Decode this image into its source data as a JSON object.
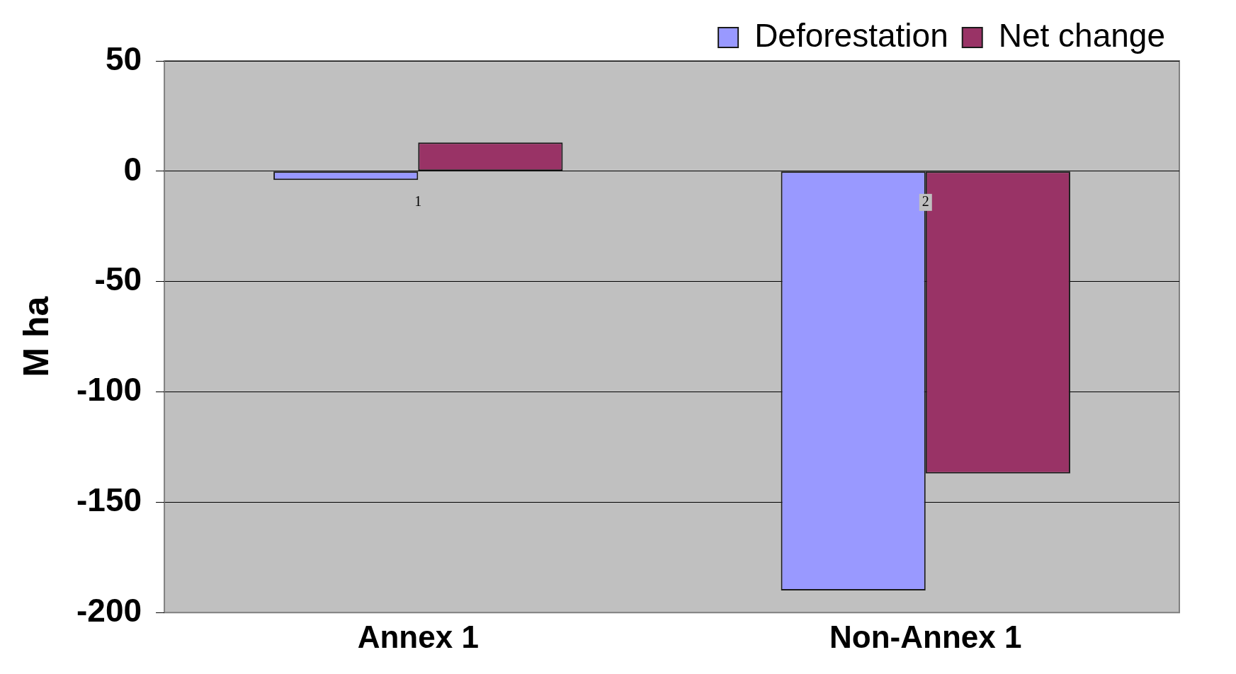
{
  "chart_data": {
    "type": "bar",
    "ylabel": "M ha",
    "categories": [
      "Annex 1",
      "Non-Annex 1"
    ],
    "series": [
      {
        "name": "Deforestation",
        "color": "#9999ff",
        "values": [
          -4,
          -190
        ]
      },
      {
        "name": "Net change",
        "color": "#993366",
        "values": [
          13,
          -137
        ]
      }
    ],
    "ylim": [
      -200,
      50
    ],
    "yticks": [
      -200,
      -150,
      -100,
      -50,
      0,
      50
    ],
    "grid": "y",
    "legend": "top right",
    "annotations": [
      {
        "text": "1",
        "x": "Annex 1",
        "y": 0
      },
      {
        "text": "2",
        "x": "Non-Annex 1",
        "y": 0
      }
    ]
  }
}
